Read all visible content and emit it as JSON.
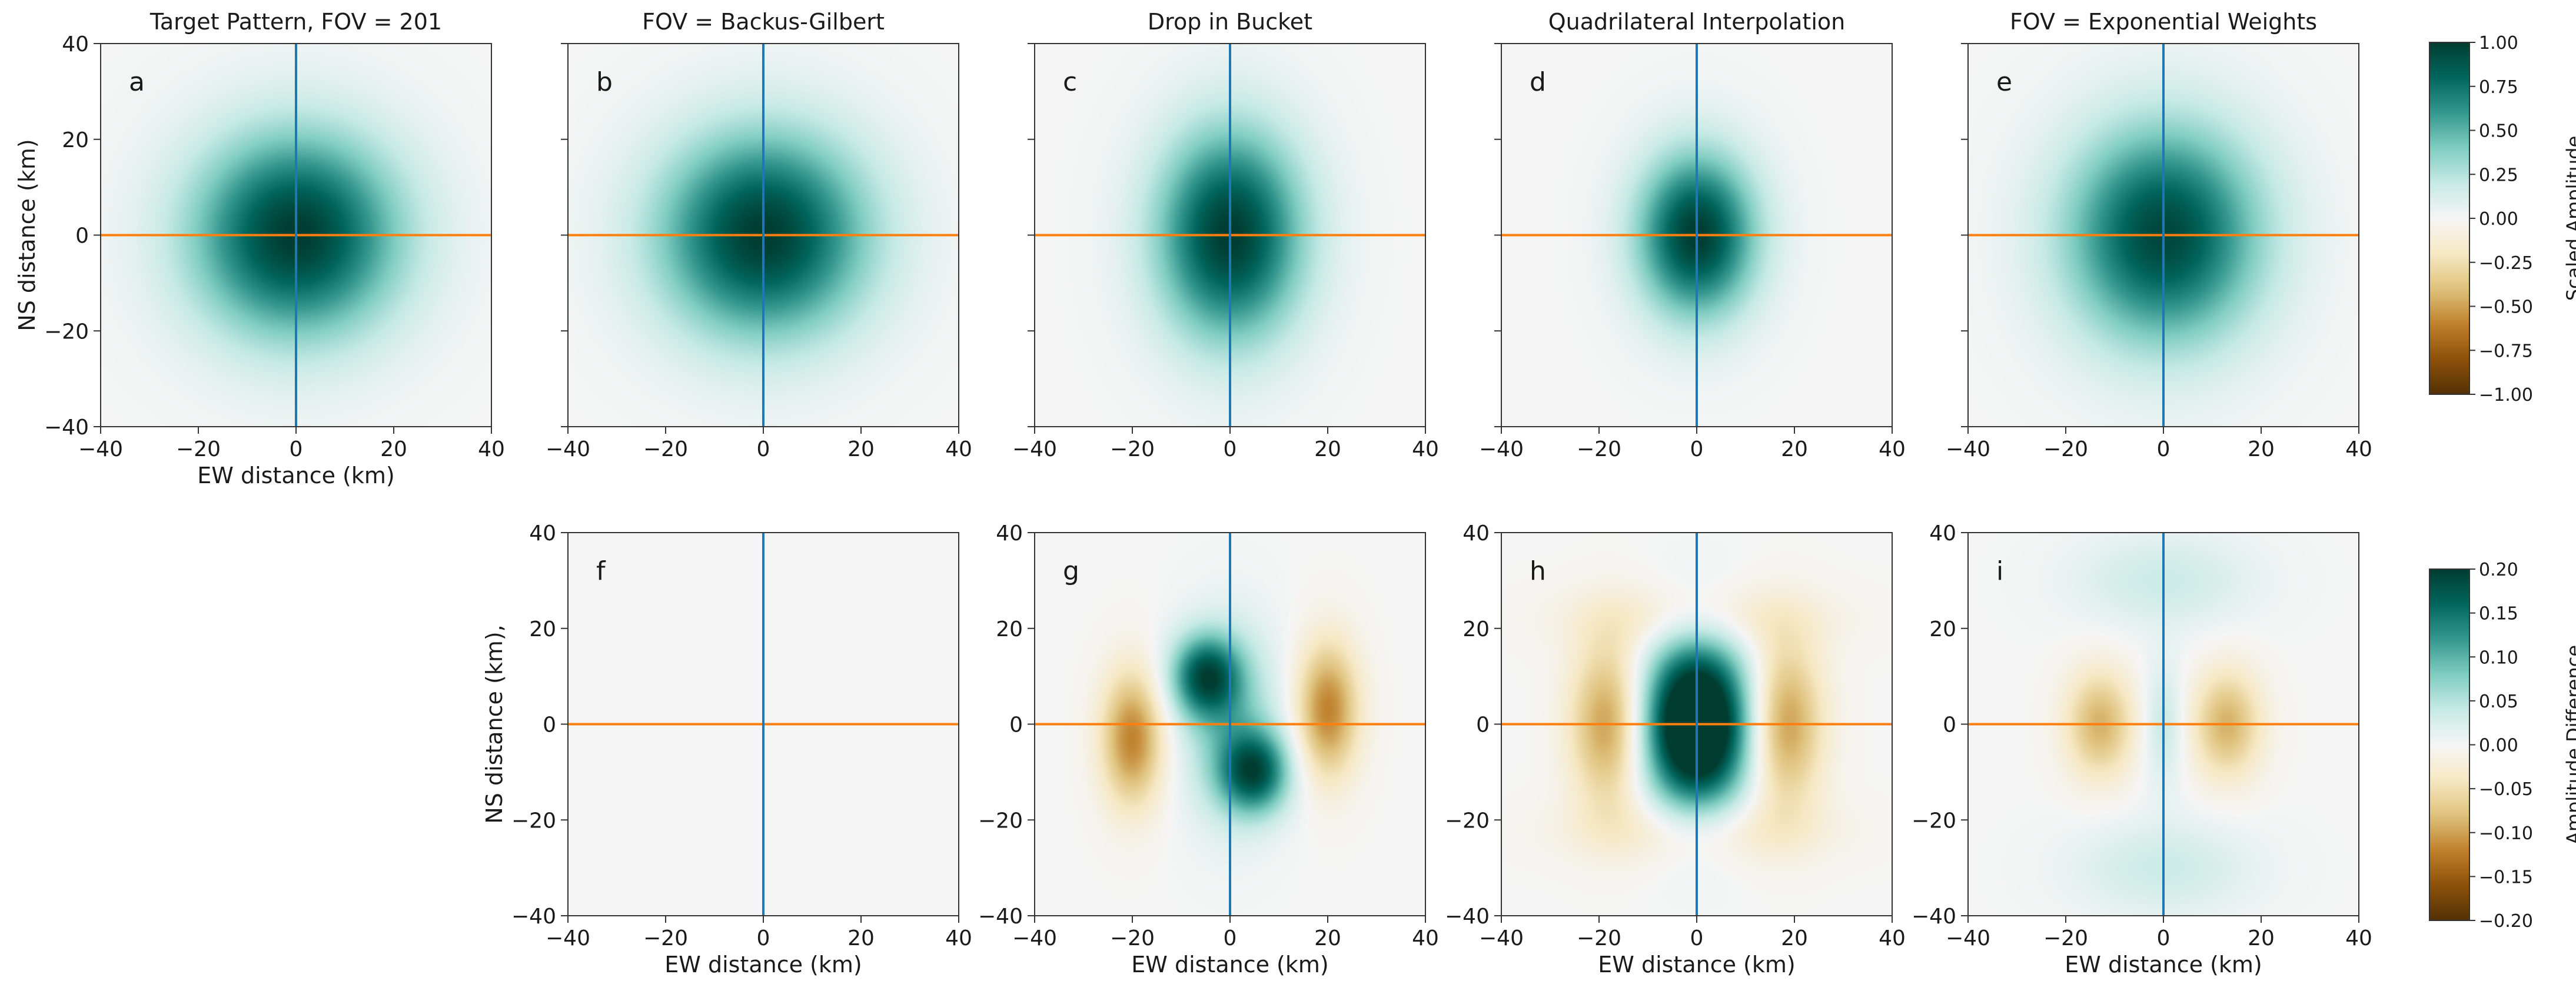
{
  "chart_data": {
    "type": "heatmap",
    "layout": "2 rows x 5 columns of heatmap panels, row 2 starts at column 2",
    "xlim": [
      -40,
      40
    ],
    "ylim": [
      -40,
      40
    ],
    "ticks": [
      -40,
      -20,
      0,
      20,
      40
    ],
    "xlabel": "EW distance (km)",
    "ylabel_top": "NS distance (km)",
    "ylabel_bottom": "NS distance (km),",
    "crosshair": {
      "vertical_at_x": 0,
      "horizontal_at_y": 0,
      "vertical_color": "#1f77b4",
      "horizontal_color": "#ff7f0e"
    },
    "colormap": "BrBG",
    "panels": [
      {
        "letter": "a",
        "title": "Target Pattern, FOV = 201",
        "row": 0,
        "col": 0,
        "scale": "amp",
        "field": [
          {
            "amp": 1.0,
            "cx": 0,
            "cy": 0,
            "sx": 15,
            "sy": 15
          }
        ],
        "show_xlabel": true,
        "show_ylabel": true,
        "ytick_labels": true
      },
      {
        "letter": "b",
        "title": "FOV = Backus-Gilbert",
        "row": 0,
        "col": 1,
        "scale": "amp",
        "field": [
          {
            "amp": 1.0,
            "cx": 0,
            "cy": 0,
            "sx": 15,
            "sy": 15
          }
        ],
        "show_xlabel": false,
        "show_ylabel": false,
        "ytick_labels": false
      },
      {
        "letter": "c",
        "title": "Drop in Bucket",
        "row": 0,
        "col": 2,
        "scale": "amp",
        "field": [
          {
            "amp": 1.0,
            "cx": 0,
            "cy": 0,
            "sx": 10.5,
            "sy": 15.5
          }
        ],
        "show_xlabel": false,
        "show_ylabel": false,
        "ytick_labels": false
      },
      {
        "letter": "d",
        "title": "Quadrilateral Interpolation",
        "row": 0,
        "col": 3,
        "scale": "amp",
        "field": [
          {
            "amp": 1.0,
            "cx": 0,
            "cy": 0,
            "sx": 8.5,
            "sy": 12
          }
        ],
        "show_xlabel": false,
        "show_ylabel": false,
        "ytick_labels": false
      },
      {
        "letter": "e",
        "title": "FOV = Exponential Weights",
        "row": 0,
        "col": 4,
        "scale": "amp",
        "field": [
          {
            "amp": 0.95,
            "cx": 0,
            "cy": 0,
            "sx": 14,
            "sy": 16
          }
        ],
        "show_xlabel": false,
        "show_ylabel": false,
        "ytick_labels": false
      },
      {
        "letter": "f",
        "title": "",
        "row": 1,
        "col": 1,
        "scale": "diff",
        "field": [],
        "show_xlabel": true,
        "show_ylabel": true,
        "ytick_labels": true
      },
      {
        "letter": "g",
        "title": "",
        "row": 1,
        "col": 2,
        "scale": "diff",
        "field": [
          {
            "amp": 0.16,
            "cx": -5,
            "cy": 10,
            "sx": 5,
            "sy": 6
          },
          {
            "amp": 0.16,
            "cx": 5,
            "cy": -10,
            "sx": 5,
            "sy": 6
          },
          {
            "amp": 0.07,
            "cx": 0,
            "cy": 0,
            "sx": 7,
            "sy": 14
          },
          {
            "amp": -0.12,
            "cx": -20,
            "cy": -3,
            "sx": 4.5,
            "sy": 10
          },
          {
            "amp": -0.12,
            "cx": 20,
            "cy": 3,
            "sx": 4.5,
            "sy": 10
          }
        ],
        "show_xlabel": true,
        "show_ylabel": false,
        "ytick_labels": true
      },
      {
        "letter": "h",
        "title": "",
        "row": 1,
        "col": 3,
        "scale": "diff",
        "field": [
          {
            "amp": 0.3,
            "cx": 0,
            "cy": 0,
            "sx": 7.5,
            "sy": 12
          },
          {
            "amp": -0.11,
            "cx": -18,
            "cy": 0,
            "sx": 5.5,
            "sy": 12
          },
          {
            "amp": -0.11,
            "cx": 18,
            "cy": 0,
            "sx": 5.5,
            "sy": 12
          },
          {
            "amp": -0.04,
            "cx": 0,
            "cy": 22,
            "sx": 18,
            "sy": 5
          },
          {
            "amp": -0.04,
            "cx": 0,
            "cy": -22,
            "sx": 18,
            "sy": 5
          }
        ],
        "show_xlabel": true,
        "show_ylabel": false,
        "ytick_labels": true
      },
      {
        "letter": "i",
        "title": "",
        "row": 1,
        "col": 4,
        "scale": "diff",
        "field": [
          {
            "amp": -0.09,
            "cx": -13,
            "cy": 0,
            "sx": 5,
            "sy": 8
          },
          {
            "amp": -0.09,
            "cx": 13,
            "cy": 0,
            "sx": 5,
            "sy": 8
          },
          {
            "amp": 0.04,
            "cx": 0,
            "cy": 0,
            "sx": 3,
            "sy": 9
          },
          {
            "amp": 0.035,
            "cx": 0,
            "cy": 30,
            "sx": 13,
            "sy": 7
          },
          {
            "amp": 0.035,
            "cx": 0,
            "cy": -30,
            "sx": 13,
            "sy": 7
          }
        ],
        "show_xlabel": true,
        "show_ylabel": false,
        "ytick_labels": true
      }
    ],
    "colorbars": [
      {
        "label": "Scaled Amplitude",
        "range": [
          -1.0,
          1.0
        ],
        "ticks": [
          "1.00",
          "0.75",
          "0.50",
          "0.25",
          "0.00",
          "-0.25",
          "-0.50",
          "-0.75",
          "-1.00"
        ]
      },
      {
        "label": "Amplitude Difference",
        "range": [
          -0.2,
          0.2
        ],
        "ticks": [
          "0.20",
          "0.15",
          "0.10",
          "0.05",
          "0.00",
          "-0.05",
          "-0.10",
          "-0.15",
          "-0.20"
        ]
      }
    ]
  }
}
